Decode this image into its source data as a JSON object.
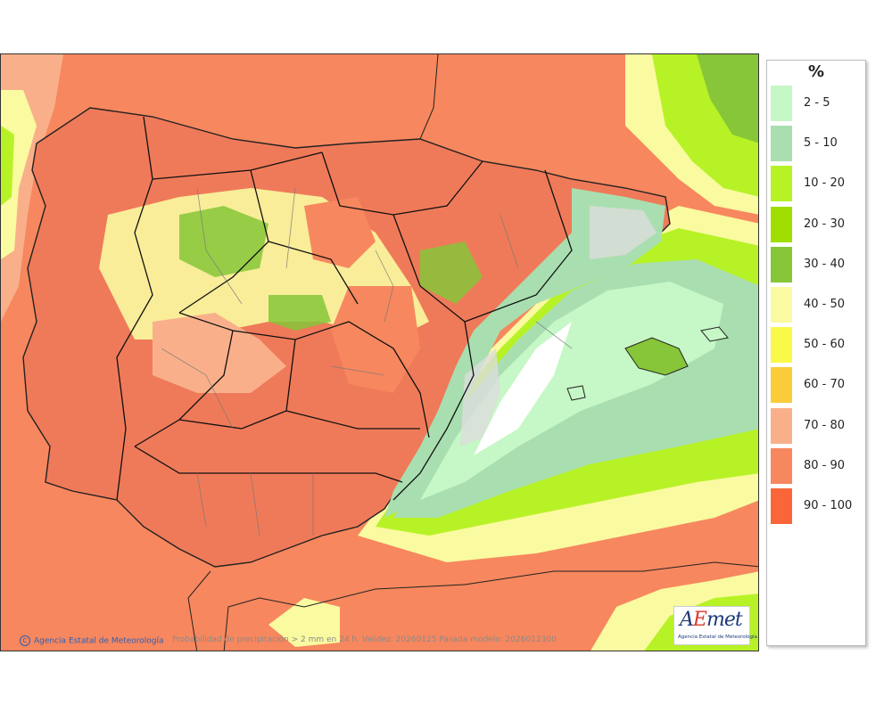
{
  "map": {
    "caption": "Probabilidad de precipitación > 2 mm en 24 h. Validez: 20260125 Pasada modelo: 2026012300",
    "credit": "Agencia Estatal de Meteorología",
    "copyright_symbol": "C"
  },
  "logo": {
    "a": "A",
    "e": "E",
    "met": "met",
    "subtitle": "Agencia Estatal de Meteorología"
  },
  "legend": {
    "unit": "%",
    "items": [
      {
        "label": "2 - 5",
        "color": "#c6f7c6"
      },
      {
        "label": "5 - 10",
        "color": "#a9dfb0"
      },
      {
        "label": "10 - 20",
        "color": "#b7f226"
      },
      {
        "label": "20 - 30",
        "color": "#9fde00"
      },
      {
        "label": "30 - 40",
        "color": "#86c638"
      },
      {
        "label": "40 - 50",
        "color": "#fafaa0"
      },
      {
        "label": "50 - 60",
        "color": "#f9f94a"
      },
      {
        "label": "60 - 70",
        "color": "#fbcc3a"
      },
      {
        "label": "70 - 80",
        "color": "#f9b08a"
      },
      {
        "label": "80 - 90",
        "color": "#f7875e"
      },
      {
        "label": "90 - 100",
        "color": "#fa663a"
      }
    ]
  },
  "colors": {
    "sea_high": "#f7875e",
    "land_high": "#ef7a59",
    "mediterranean_low": "#c6f7c6",
    "border": "#222222"
  }
}
